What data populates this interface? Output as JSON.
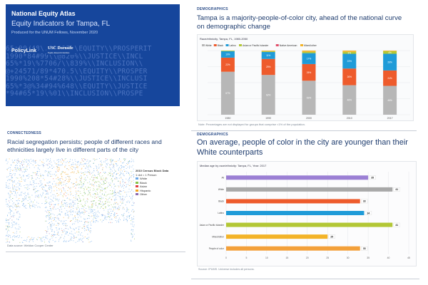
{
  "slide1": {
    "org": "National Equity Atlas",
    "title": "Equity Indicators for Tampa, FL",
    "subtitle": "Produced for the UNUM Fellows, November 2020",
    "logo_left": "PolicyLink",
    "logo_right_line1": "USC Dornsife",
    "logo_right_line2": "Equity Research Institute",
    "background_lines": [
      "65+90/48\\.01001\\\\EQUITY\\\\PROSPERIT",
      "1990*84#99\\\\@820%\\\\JUSTICE\\\\INCL",
      "65%*19\\%7706/\\\\839%\\\\INCLUSION\\\\",
      "@+24571/89*470.5\\\\EQUITY\\\\PROSPER",
      "1990%208*54#28%\\\\JUSTICE\\\\INCLUSI",
      "65%*3@%34#94%648\\\\EQUITY\\\\JUSTICE",
      "*94#65*19\\%01\\\\INCLUSION\\\\PROSPE"
    ]
  },
  "slide2": {
    "tag": "DEMOGRAPHICS",
    "heading": "Tampa is a majority-people-of-color city, ahead of the national curve on demographic change",
    "chart_title": "Race/ethnicity, Tampa, FL, 1980-2050",
    "note": "Note: Percentages are not displayed for groups that comprise <1% of the population.",
    "chart_data": {
      "type": "bar",
      "stacked": true,
      "title": "Race/ethnicity, Tampa, FL, 1980-2050",
      "categories": [
        "1980",
        "1990",
        "2000",
        "2010",
        "2017"
      ],
      "series": [
        {
          "name": "White",
          "color": "#b7b7b7",
          "values": [
            67,
            62,
            53,
            46,
            45
          ]
        },
        {
          "name": "Black",
          "color": "#ee5b2c",
          "values": [
            22,
            25,
            26,
            26,
            24
          ]
        },
        {
          "name": "Latino",
          "color": "#1f9bd8",
          "values": [
            10,
            11,
            17,
            23,
            26
          ]
        },
        {
          "name": "Asian or Pacific Islander",
          "color": "#b3c735",
          "values": [
            1,
            1,
            2,
            3,
            4
          ]
        },
        {
          "name": "Native American",
          "color": "#e04e6a",
          "values": [
            0,
            0,
            0,
            0,
            0
          ]
        },
        {
          "name": "Mixed/other",
          "color": "#f3b328",
          "values": [
            0,
            1,
            2,
            2,
            1
          ]
        }
      ],
      "ylim": [
        0,
        100
      ],
      "legend": "top"
    }
  },
  "slide3": {
    "tag": "CONNECTEDNESS",
    "heading": "Racial segregation persists; people of different races and ethnicities largely live in different parts of the city",
    "source": "Data source: Weldon Cooper Center",
    "legend_title": "2010 Census Block Data",
    "legend_scale": "1 dot = 1 Person",
    "legend_items": [
      {
        "label": "White",
        "color": "#6aa8e8"
      },
      {
        "label": "Black",
        "color": "#86c34a"
      },
      {
        "label": "Asian",
        "color": "#e04040"
      },
      {
        "label": "Hispanic",
        "color": "#f5a623"
      },
      {
        "label": "Other",
        "color": "#8c6bb1"
      }
    ]
  },
  "slide4": {
    "tag": "DEMOGRAPHICS",
    "heading": "On average, people of color in the city are younger than their White counterparts",
    "chart_title": "Median age by race/ethnicity: Tampa, FL, Year: 2017",
    "note": "Source: IPUMS. Universe includes all persons.",
    "chart_data": {
      "type": "bar",
      "orientation": "horizontal",
      "title": "Median age by race/ethnicity: Tampa, FL, Year: 2017",
      "categories": [
        "All",
        "White",
        "Black",
        "Latino",
        "Asian or Pacific Islander",
        "Mixed/other",
        "People of color"
      ],
      "values": [
        35,
        41,
        33,
        34,
        41,
        25,
        33
      ],
      "colors": [
        "#9b7fd4",
        "#a8a8a8",
        "#ee5b2c",
        "#1f9bd8",
        "#b3c735",
        "#f3b328",
        "#f3a03a"
      ],
      "xlim": [
        0,
        45
      ],
      "xticks": [
        0,
        5,
        10,
        15,
        20,
        25,
        30,
        35,
        40,
        45
      ]
    }
  }
}
